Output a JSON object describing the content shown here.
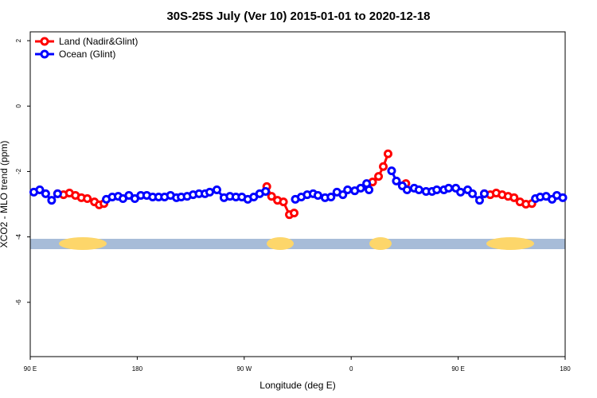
{
  "chart_data": {
    "type": "line",
    "title": "30S-25S July (Ver 10)   2015-01-01 to 2020-12-18",
    "x_label": "Longitude (deg E)",
    "y_label": "XCO2 - MLO trend (ppm)",
    "xlim": [
      90,
      540
    ],
    "ylim": [
      -7.66,
      2.27
    ],
    "xticks": [
      {
        "value": 90,
        "label": "90 E"
      },
      {
        "value": 180,
        "label": "180"
      },
      {
        "value": 270,
        "label": "90 W"
      },
      {
        "value": 360,
        "label": "0"
      },
      {
        "value": 450,
        "label": "90 E"
      },
      {
        "value": 540,
        "label": "180"
      }
    ],
    "yticks": [
      2,
      0,
      -2,
      -4,
      -6
    ],
    "legend": "top-left",
    "series": [
      {
        "name": "Land (Nadir&Glint)",
        "color": "#ff0000",
        "x": [
          113,
          118,
          123,
          128,
          133,
          138,
          144,
          148,
          152,
          null,
          289,
          293,
          298,
          303,
          308,
          312,
          null,
          373,
          378,
          383,
          387,
          391,
          null,
          406,
          null,
          472,
          477,
          482,
          487,
          492,
          497,
          502,
          507,
          512
        ],
        "values": [
          -2.68,
          -2.71,
          -2.66,
          -2.73,
          -2.8,
          -2.83,
          -2.93,
          -3.02,
          -2.98,
          null,
          -2.46,
          -2.76,
          -2.88,
          -2.93,
          -3.32,
          -3.27,
          null,
          -2.44,
          -2.32,
          -2.15,
          -1.85,
          -1.46,
          null,
          -2.37,
          null,
          -2.68,
          -2.71,
          -2.66,
          -2.71,
          -2.76,
          -2.8,
          -2.93,
          -3.0,
          -2.98
        ]
      },
      {
        "name": "Ocean (Glint)",
        "color": "#0000ff",
        "x": [
          93,
          98,
          103,
          108,
          113,
          null,
          154,
          159,
          164,
          168,
          173,
          178,
          183,
          188,
          193,
          198,
          203,
          208,
          213,
          217,
          222,
          227,
          232,
          237,
          241,
          247,
          253,
          258,
          263,
          268,
          273,
          278,
          283,
          288,
          null,
          313,
          318,
          323,
          328,
          332,
          338,
          343,
          348,
          353,
          357,
          363,
          368,
          373,
          375,
          null,
          394,
          398,
          403,
          407,
          413,
          417,
          423,
          428,
          432,
          438,
          442,
          448,
          452,
          458,
          462,
          468,
          472,
          null,
          515,
          519,
          524,
          529,
          533,
          538
        ],
        "values": [
          -2.63,
          -2.56,
          -2.68,
          -2.88,
          -2.68,
          null,
          -2.85,
          -2.78,
          -2.76,
          -2.83,
          -2.73,
          -2.83,
          -2.73,
          -2.73,
          -2.78,
          -2.78,
          -2.78,
          -2.73,
          -2.8,
          -2.78,
          -2.76,
          -2.71,
          -2.68,
          -2.68,
          -2.63,
          -2.56,
          -2.8,
          -2.76,
          -2.78,
          -2.78,
          -2.85,
          -2.78,
          -2.68,
          -2.61,
          null,
          -2.85,
          -2.78,
          -2.71,
          -2.68,
          -2.73,
          -2.8,
          -2.78,
          -2.63,
          -2.71,
          -2.56,
          -2.59,
          -2.51,
          -2.37,
          -2.56,
          null,
          -1.98,
          -2.29,
          -2.44,
          -2.56,
          -2.51,
          -2.56,
          -2.61,
          -2.61,
          -2.56,
          -2.56,
          -2.51,
          -2.51,
          -2.63,
          -2.56,
          -2.68,
          -2.88,
          -2.68,
          null,
          -2.83,
          -2.78,
          -2.76,
          -2.85,
          -2.73,
          -2.8
        ]
      }
    ]
  }
}
